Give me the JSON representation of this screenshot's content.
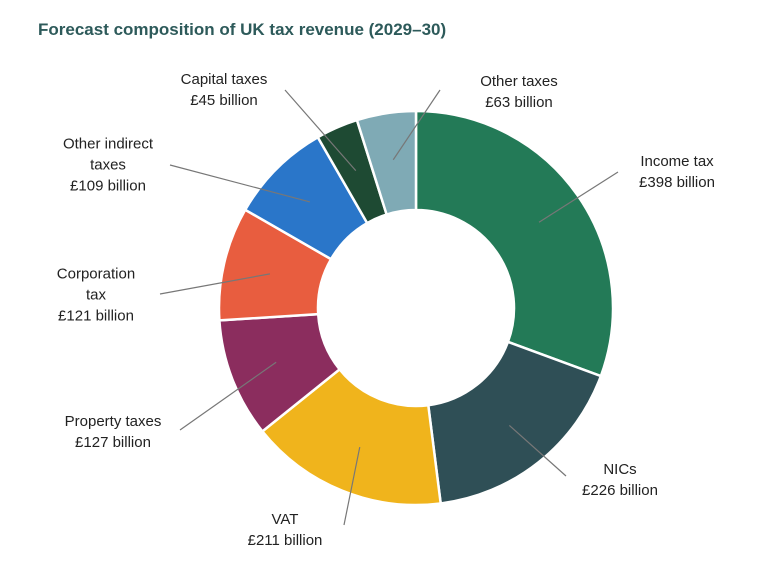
{
  "chart_data": {
    "type": "donut",
    "title": "Forecast composition of UK tax revenue (2029–30)",
    "categories": [
      "Income tax",
      "NICs",
      "VAT",
      "Property taxes",
      "Corporation tax",
      "Other indirect taxes",
      "Capital taxes",
      "Other taxes"
    ],
    "values": [
      398,
      226,
      211,
      127,
      121,
      109,
      45,
      63
    ],
    "value_labels": [
      "£398 billion",
      "£226 billion",
      "£211 billion",
      "£127 billion",
      "£121 billion",
      "£109 billion",
      "£45 billion",
      "£63 billion"
    ],
    "colors": [
      "#237a57",
      "#2f4f56",
      "#f0b41c",
      "#8b2d5e",
      "#e85d3f",
      "#2a76c9",
      "#1e4a33",
      "#7faab5"
    ]
  }
}
